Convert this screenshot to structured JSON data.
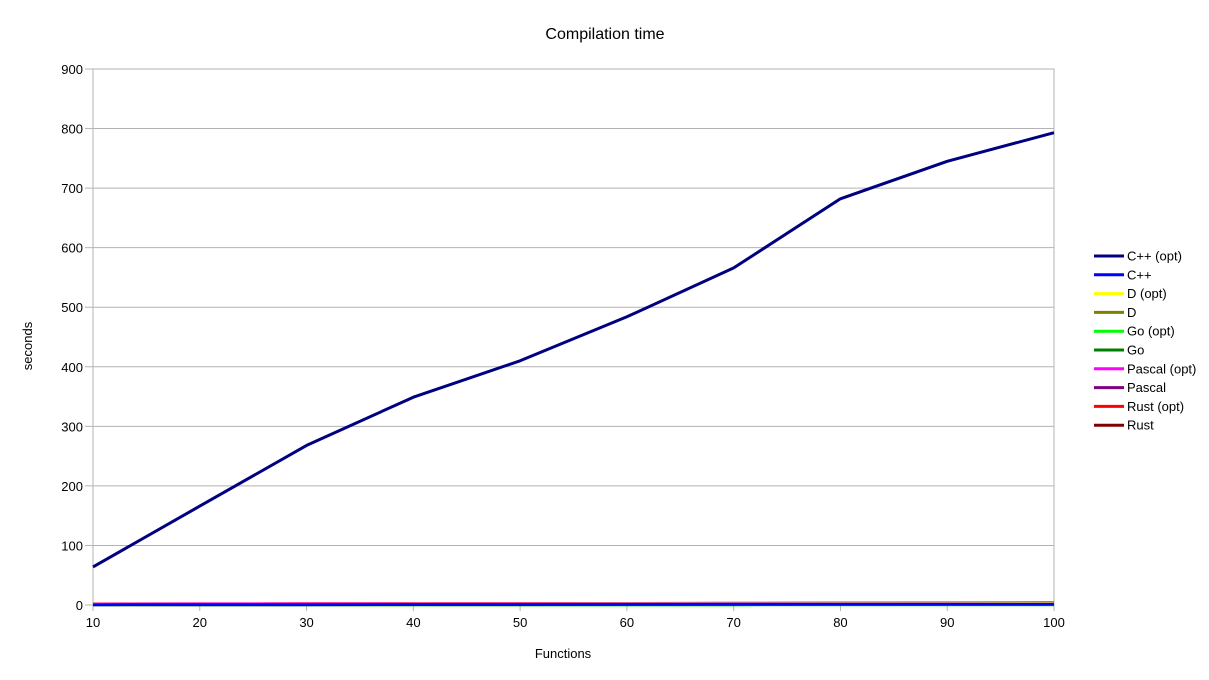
{
  "chart_data": {
    "type": "line",
    "title": "Compilation time",
    "xlabel": "Functions",
    "ylabel": "seconds",
    "x": [
      10,
      20,
      30,
      40,
      50,
      60,
      70,
      80,
      90,
      100
    ],
    "xlim": [
      10,
      100
    ],
    "ylim": [
      0,
      900
    ],
    "xticks": [
      "10",
      "20",
      "30",
      "40",
      "50",
      "60",
      "70",
      "80",
      "90",
      "100"
    ],
    "yticks": [
      "0",
      "100",
      "200",
      "300",
      "400",
      "500",
      "600",
      "700",
      "800",
      "900"
    ],
    "grid": true,
    "legend_position": "right",
    "series": [
      {
        "name": "C++ (opt)",
        "color": "#000080",
        "values": [
          64,
          166,
          268,
          349,
          410,
          484,
          566,
          682,
          745,
          793
        ]
      },
      {
        "name": "C++",
        "color": "#0000ff",
        "values": [
          0.5,
          0.6,
          0.7,
          0.8,
          0.9,
          1.0,
          1.1,
          1.2,
          1.3,
          1.4
        ]
      },
      {
        "name": "D (opt)",
        "color": "#ffff00",
        "values": [
          0.6,
          0.8,
          1.0,
          1.2,
          1.4,
          1.6,
          1.8,
          2.0,
          2.2,
          2.4
        ]
      },
      {
        "name": "D",
        "color": "#808000",
        "values": [
          0.3,
          0.4,
          0.5,
          0.6,
          0.7,
          0.8,
          0.9,
          1.0,
          1.1,
          1.2
        ]
      },
      {
        "name": "Go (opt)",
        "color": "#00ff00",
        "values": [
          0.2,
          0.3,
          0.3,
          0.4,
          0.4,
          0.5,
          0.5,
          0.6,
          0.6,
          0.7
        ]
      },
      {
        "name": "Go",
        "color": "#008000",
        "values": [
          0.2,
          0.3,
          0.3,
          0.4,
          0.4,
          0.5,
          0.5,
          0.6,
          0.6,
          0.7
        ]
      },
      {
        "name": "Pascal (opt)",
        "color": "#ff00ff",
        "values": [
          1.0,
          1.5,
          1.8,
          2.0,
          2.2,
          2.4,
          2.6,
          2.8,
          3.0,
          3.2
        ]
      },
      {
        "name": "Pascal",
        "color": "#800080",
        "values": [
          0.8,
          1.2,
          1.5,
          1.7,
          1.9,
          2.1,
          2.3,
          2.5,
          2.7,
          2.9
        ]
      },
      {
        "name": "Rust (opt)",
        "color": "#ff0000",
        "values": [
          1.5,
          1.8,
          2.0,
          2.2,
          2.4,
          2.6,
          2.8,
          3.0,
          3.3,
          3.6
        ]
      },
      {
        "name": "Rust",
        "color": "#800000",
        "values": [
          1.2,
          1.5,
          1.8,
          2.0,
          2.2,
          2.4,
          2.6,
          2.9,
          3.2,
          3.5
        ]
      }
    ]
  }
}
